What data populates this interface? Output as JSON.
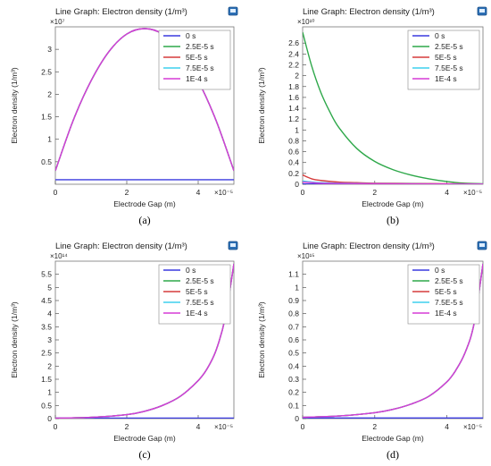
{
  "chart_data": [
    {
      "type": "line",
      "title": "Line Graph: Electron density (1/m³)",
      "caption": "(a)",
      "xlabel": "Electrode Gap (m)",
      "ylabel": "Electron density (1/m³)",
      "x_multiplier": "×10⁻⁵",
      "y_multiplier": "×10⁷",
      "xlim": [
        0,
        5e-05
      ],
      "ylim": [
        0,
        35000000.0
      ],
      "xticks": [
        {
          "v": 0,
          "label": "0"
        },
        {
          "v": 2e-05,
          "label": "2"
        },
        {
          "v": 4e-05,
          "label": "4"
        }
      ],
      "yticks": [
        {
          "v": 5000000.0,
          "label": "0.5"
        },
        {
          "v": 10000000.0,
          "label": "1"
        },
        {
          "v": 15000000.0,
          "label": "1.5"
        },
        {
          "v": 20000000.0,
          "label": "2"
        },
        {
          "v": 25000000.0,
          "label": "2.5"
        },
        {
          "v": 30000000.0,
          "label": "3"
        }
      ],
      "legend": "top-right",
      "series": [
        {
          "name": "0 s",
          "color": "#3a3adf",
          "x": [
            0,
            1e-05,
            2e-05,
            3e-05,
            4e-05,
            5e-05
          ],
          "y": [
            1000000.0,
            1000000.0,
            1000000.0,
            1000000.0,
            1000000.0,
            1000000.0
          ]
        },
        {
          "name": "2.5E-5 s",
          "color": "#2ea84a",
          "x": [
            0,
            5e-06,
            1e-05,
            1.5e-05,
            2e-05,
            2.5e-05,
            3e-05,
            3.5e-05,
            4e-05,
            4.5e-05,
            5e-05
          ],
          "y": [
            3000000.0,
            14200000.0,
            23000000.0,
            29500000.0,
            33400000.0,
            34600000.0,
            33400000.0,
            29500000.0,
            23000000.0,
            14200000.0,
            3000000.0
          ]
        },
        {
          "name": "5E-5 s",
          "color": "#d63b3b",
          "x": [
            0,
            5e-06,
            1e-05,
            1.5e-05,
            2e-05,
            2.5e-05,
            3e-05,
            3.5e-05,
            4e-05,
            4.5e-05,
            5e-05
          ],
          "y": [
            3000000.0,
            14200000.0,
            23000000.0,
            29500000.0,
            33400000.0,
            34600000.0,
            33400000.0,
            29500000.0,
            23000000.0,
            14200000.0,
            3000000.0
          ]
        },
        {
          "name": "7.5E-5 s",
          "color": "#3fd0ee",
          "x": [
            0,
            5e-06,
            1e-05,
            1.5e-05,
            2e-05,
            2.5e-05,
            3e-05,
            3.5e-05,
            4e-05,
            4.5e-05,
            5e-05
          ],
          "y": [
            3000000.0,
            14200000.0,
            23000000.0,
            29500000.0,
            33400000.0,
            34600000.0,
            33400000.0,
            29500000.0,
            23000000.0,
            14200000.0,
            3000000.0
          ]
        },
        {
          "name": "1E-4 s",
          "color": "#d63bd6",
          "x": [
            0,
            5e-06,
            1e-05,
            1.5e-05,
            2e-05,
            2.5e-05,
            3e-05,
            3.5e-05,
            4e-05,
            4.5e-05,
            5e-05
          ],
          "y": [
            3000000.0,
            14200000.0,
            23000000.0,
            29500000.0,
            33400000.0,
            34600000.0,
            33400000.0,
            29500000.0,
            23000000.0,
            14200000.0,
            3000000.0
          ]
        }
      ]
    },
    {
      "type": "line",
      "title": "Line Graph: Electron density (1/m³)",
      "caption": "(b)",
      "xlabel": "Electrode Gap (m)",
      "ylabel": "Electron density (1/m³)",
      "x_multiplier": "×10⁻⁵",
      "y_multiplier": "×10¹⁰",
      "xlim": [
        0,
        5e-05
      ],
      "ylim": [
        0,
        29000000000.0
      ],
      "xticks": [
        {
          "v": 0,
          "label": "0"
        },
        {
          "v": 2e-05,
          "label": "2"
        },
        {
          "v": 4e-05,
          "label": "4"
        }
      ],
      "yticks": [
        {
          "v": 0,
          "label": "0"
        },
        {
          "v": 2000000000.0,
          "label": "0.2"
        },
        {
          "v": 4000000000.0,
          "label": "0.4"
        },
        {
          "v": 6000000000.0,
          "label": "0.6"
        },
        {
          "v": 8000000000.0,
          "label": "0.8"
        },
        {
          "v": 10000000000.0,
          "label": "1"
        },
        {
          "v": 12000000000.0,
          "label": "1.2"
        },
        {
          "v": 14000000000.0,
          "label": "1.4"
        },
        {
          "v": 16000000000.0,
          "label": "1.6"
        },
        {
          "v": 18000000000.0,
          "label": "1.8"
        },
        {
          "v": 20000000000.0,
          "label": "2"
        },
        {
          "v": 22000000000.0,
          "label": "2.2"
        },
        {
          "v": 24000000000.0,
          "label": "2.4"
        },
        {
          "v": 26000000000.0,
          "label": "2.6"
        }
      ],
      "legend": "top-right",
      "series": [
        {
          "name": "0 s",
          "color": "#3a3adf",
          "x": [
            0,
            1e-05,
            2e-05,
            3e-05,
            4e-05,
            5e-05
          ],
          "y": [
            50000000.0,
            50000000.0,
            50000000.0,
            50000000.0,
            50000000.0,
            50000000.0
          ]
        },
        {
          "name": "2.5E-5 s",
          "color": "#2ea84a",
          "x": [
            0,
            2.5e-06,
            5e-06,
            7.5e-06,
            1e-05,
            1.5e-05,
            2e-05,
            2.5e-05,
            3e-05,
            3.5e-05,
            4e-05,
            4.5e-05,
            5e-05
          ],
          "y": [
            28000000000.0,
            21800000000.0,
            17000000000.0,
            13400000000.0,
            10500000000.0,
            6600000000.0,
            4200000000.0,
            2700000000.0,
            1700000000.0,
            1000000000.0,
            500000000.0,
            200000000.0,
            100000000.0
          ]
        },
        {
          "name": "5E-5 s",
          "color": "#d63b3b",
          "x": [
            0,
            2.5e-06,
            5e-06,
            1e-05,
            1.5e-05,
            2e-05,
            3e-05,
            4e-05,
            5e-05
          ],
          "y": [
            1700000000.0,
            1000000000.0,
            700000000.0,
            400000000.0,
            300000000.0,
            200000000.0,
            150000000.0,
            100000000.0,
            50000000.0
          ]
        },
        {
          "name": "7.5E-5 s",
          "color": "#3fd0ee",
          "x": [
            0,
            2.5e-06,
            5e-06,
            1e-05,
            2e-05,
            3e-05,
            4e-05,
            5e-05
          ],
          "y": [
            600000000.0,
            400000000.0,
            300000000.0,
            200000000.0,
            120000000.0,
            80000000.0,
            50000000.0,
            30000000.0
          ]
        },
        {
          "name": "1E-4 s",
          "color": "#d63bd6",
          "x": [
            0,
            2.5e-06,
            5e-06,
            1e-05,
            2e-05,
            3e-05,
            4e-05,
            5e-05
          ],
          "y": [
            400000000.0,
            300000000.0,
            200000000.0,
            150000000.0,
            100000000.0,
            60000000.0,
            40000000.0,
            20000000.0
          ]
        }
      ]
    },
    {
      "type": "line",
      "title": "Line Graph: Electron density (1/m³)",
      "caption": "(c)",
      "xlabel": "Electrode Gap (m)",
      "ylabel": "Electron density (1/m³)",
      "x_multiplier": "×10⁻⁵",
      "y_multiplier": "×10¹⁴",
      "xlim": [
        0,
        5e-05
      ],
      "ylim": [
        0,
        600000000000000.0
      ],
      "xticks": [
        {
          "v": 0,
          "label": "0"
        },
        {
          "v": 2e-05,
          "label": "2"
        },
        {
          "v": 4e-05,
          "label": "4"
        }
      ],
      "yticks": [
        {
          "v": 0,
          "label": "0"
        },
        {
          "v": 50000000000000.0,
          "label": "0.5"
        },
        {
          "v": 100000000000000.0,
          "label": "1"
        },
        {
          "v": 150000000000000.0,
          "label": "1.5"
        },
        {
          "v": 200000000000000.0,
          "label": "2"
        },
        {
          "v": 250000000000000.0,
          "label": "2.5"
        },
        {
          "v": 300000000000000.0,
          "label": "3"
        },
        {
          "v": 350000000000000.0,
          "label": "3.5"
        },
        {
          "v": 400000000000000.0,
          "label": "4"
        },
        {
          "v": 450000000000000.0,
          "label": "4.5"
        },
        {
          "v": 500000000000000.0,
          "label": "5"
        },
        {
          "v": 550000000000000.0,
          "label": "5.5"
        }
      ],
      "legend": "top-right",
      "series": [
        {
          "name": "0 s",
          "color": "#3a3adf",
          "x": [
            0,
            1e-05,
            2e-05,
            3e-05,
            4e-05,
            5e-05
          ],
          "y": [
            2000000000000.0,
            2000000000000.0,
            2000000000000.0,
            2000000000000.0,
            2000000000000.0,
            2000000000000.0
          ]
        },
        {
          "name": "2.5E-5 s",
          "color": "#2ea84a",
          "x": [
            0,
            1e-05,
            2e-05,
            2.5e-05,
            3e-05,
            3.5e-05,
            4e-05,
            4.25e-05,
            4.5e-05,
            4.75e-05,
            5e-05
          ],
          "y": [
            2000000000000.0,
            5000000000000.0,
            15000000000000.0,
            28000000000000.0,
            50000000000000.0,
            85000000000000.0,
            145000000000000.0,
            190000000000000.0,
            260000000000000.0,
            380000000000000.0,
            590000000000000.0
          ]
        },
        {
          "name": "5E-5 s",
          "color": "#d63b3b",
          "x": [
            0,
            1e-05,
            2e-05,
            2.5e-05,
            3e-05,
            3.5e-05,
            4e-05,
            4.25e-05,
            4.5e-05,
            4.75e-05,
            5e-05
          ],
          "y": [
            2000000000000.0,
            5000000000000.0,
            15000000000000.0,
            28000000000000.0,
            50000000000000.0,
            85000000000000.0,
            145000000000000.0,
            190000000000000.0,
            260000000000000.0,
            380000000000000.0,
            590000000000000.0
          ]
        },
        {
          "name": "7.5E-5 s",
          "color": "#3fd0ee",
          "x": [
            0,
            1e-05,
            2e-05,
            2.5e-05,
            3e-05,
            3.5e-05,
            4e-05,
            4.25e-05,
            4.5e-05,
            4.75e-05,
            5e-05
          ],
          "y": [
            2000000000000.0,
            5000000000000.0,
            15000000000000.0,
            28000000000000.0,
            50000000000000.0,
            85000000000000.0,
            145000000000000.0,
            190000000000000.0,
            260000000000000.0,
            380000000000000.0,
            590000000000000.0
          ]
        },
        {
          "name": "1E-4 s",
          "color": "#d63bd6",
          "x": [
            0,
            1e-05,
            2e-05,
            2.5e-05,
            3e-05,
            3.5e-05,
            4e-05,
            4.25e-05,
            4.5e-05,
            4.75e-05,
            5e-05
          ],
          "y": [
            2000000000000.0,
            5000000000000.0,
            15000000000000.0,
            28000000000000.0,
            50000000000000.0,
            85000000000000.0,
            145000000000000.0,
            190000000000000.0,
            260000000000000.0,
            380000000000000.0,
            590000000000000.0
          ]
        }
      ]
    },
    {
      "type": "line",
      "title": "Line Graph: Electron density (1/m³)",
      "caption": "(d)",
      "xlabel": "Electrode Gap (m)",
      "ylabel": "Electron density (1/m³)",
      "x_multiplier": "×10⁻⁵",
      "y_multiplier": "×10¹⁵",
      "xlim": [
        0,
        5e-05
      ],
      "ylim": [
        0,
        1200000000000000.0
      ],
      "xticks": [
        {
          "v": 0,
          "label": "0"
        },
        {
          "v": 2e-05,
          "label": "2"
        },
        {
          "v": 4e-05,
          "label": "4"
        }
      ],
      "yticks": [
        {
          "v": 0,
          "label": "0"
        },
        {
          "v": 100000000000000.0,
          "label": "0.1"
        },
        {
          "v": 200000000000000.0,
          "label": "0.2"
        },
        {
          "v": 300000000000000.0,
          "label": "0.3"
        },
        {
          "v": 400000000000000.0,
          "label": "0.4"
        },
        {
          "v": 500000000000000.0,
          "label": "0.5"
        },
        {
          "v": 600000000000000.0,
          "label": "0.6"
        },
        {
          "v": 700000000000000.0,
          "label": "0.7"
        },
        {
          "v": 800000000000000.0,
          "label": "0.8"
        },
        {
          "v": 900000000000000.0,
          "label": "0.9"
        },
        {
          "v": 1000000000000000.0,
          "label": "1"
        },
        {
          "v": 1100000000000000.0,
          "label": "1.1"
        }
      ],
      "legend": "top-right",
      "series": [
        {
          "name": "0 s",
          "color": "#3a3adf",
          "x": [
            0,
            1e-05,
            2e-05,
            3e-05,
            4e-05,
            5e-05
          ],
          "y": [
            5000000000000.0,
            5000000000000.0,
            5000000000000.0,
            5000000000000.0,
            5000000000000.0,
            5000000000000.0
          ]
        },
        {
          "name": "2.5E-5 s",
          "color": "#2ea84a",
          "x": [
            0,
            1e-05,
            2e-05,
            2.5e-05,
            3e-05,
            3.5e-05,
            4e-05,
            4.25e-05,
            4.5e-05,
            4.75e-05,
            5e-05
          ],
          "y": [
            10000000000000.0,
            20000000000000.0,
            45000000000000.0,
            70000000000000.0,
            110000000000000.0,
            170000000000000.0,
            280000000000000.0,
            370000000000000.0,
            500000000000000.0,
            720000000000000.0,
            1180000000000000.0
          ]
        },
        {
          "name": "5E-5 s",
          "color": "#d63b3b",
          "x": [
            0,
            1e-05,
            2e-05,
            2.5e-05,
            3e-05,
            3.5e-05,
            4e-05,
            4.25e-05,
            4.5e-05,
            4.75e-05,
            5e-05
          ],
          "y": [
            10000000000000.0,
            20000000000000.0,
            45000000000000.0,
            70000000000000.0,
            110000000000000.0,
            170000000000000.0,
            280000000000000.0,
            370000000000000.0,
            500000000000000.0,
            720000000000000.0,
            1180000000000000.0
          ]
        },
        {
          "name": "7.5E-5 s",
          "color": "#3fd0ee",
          "x": [
            0,
            1e-05,
            2e-05,
            2.5e-05,
            3e-05,
            3.5e-05,
            4e-05,
            4.25e-05,
            4.5e-05,
            4.75e-05,
            5e-05
          ],
          "y": [
            10000000000000.0,
            20000000000000.0,
            45000000000000.0,
            70000000000000.0,
            110000000000000.0,
            170000000000000.0,
            280000000000000.0,
            370000000000000.0,
            500000000000000.0,
            720000000000000.0,
            1180000000000000.0
          ]
        },
        {
          "name": "1E-4 s",
          "color": "#d63bd6",
          "x": [
            0,
            1e-05,
            2e-05,
            2.5e-05,
            3e-05,
            3.5e-05,
            4e-05,
            4.25e-05,
            4.5e-05,
            4.75e-05,
            5e-05
          ],
          "y": [
            10000000000000.0,
            20000000000000.0,
            45000000000000.0,
            70000000000000.0,
            110000000000000.0,
            170000000000000.0,
            280000000000000.0,
            370000000000000.0,
            500000000000000.0,
            720000000000000.0,
            1180000000000000.0
          ]
        }
      ]
    }
  ]
}
